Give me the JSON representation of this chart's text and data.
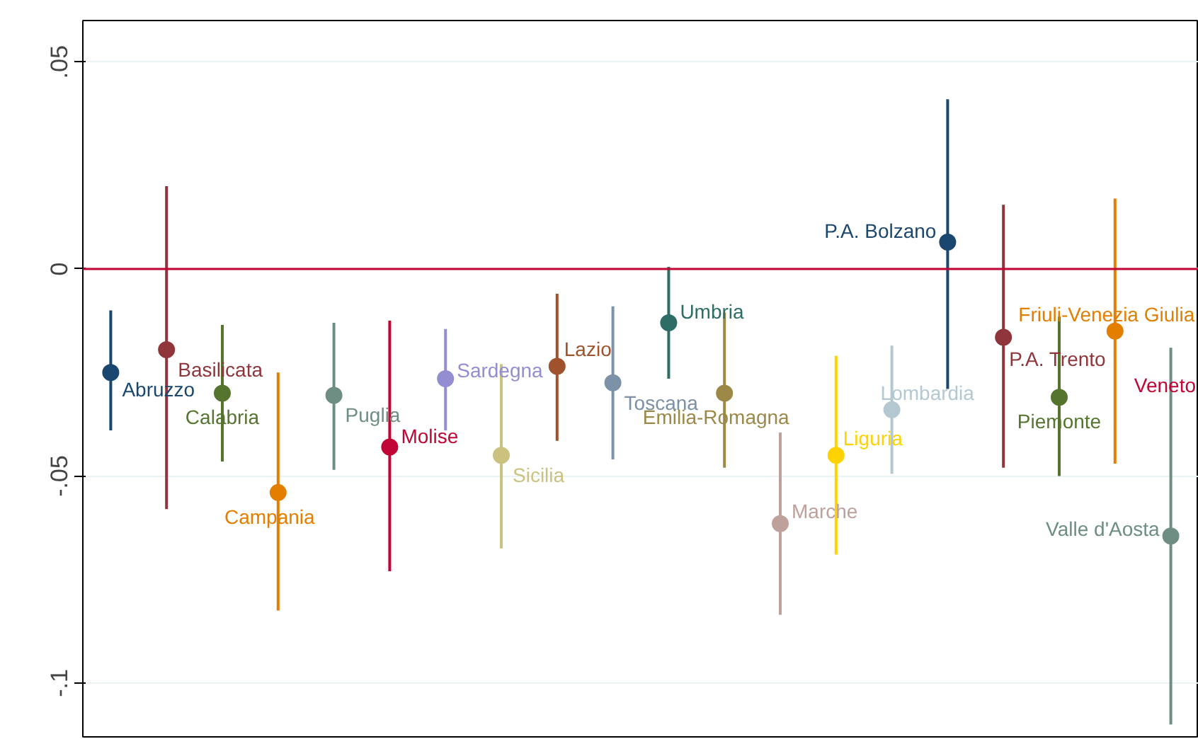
{
  "chart_data": {
    "type": "scatter",
    "categories": [
      null,
      null,
      null,
      null,
      null,
      null,
      null,
      null,
      null,
      null,
      null,
      null,
      null,
      null,
      null,
      null,
      null,
      null,
      null,
      null
    ],
    "series": [
      {
        "name": "Abruzzo",
        "color": "#1a476f",
        "values": [
          -0.025,
          null,
          null,
          null,
          null,
          null,
          null,
          null,
          null,
          null,
          null,
          null,
          null,
          null,
          null,
          null,
          null,
          null,
          null,
          null
        ],
        "errors": [
          [
            -0.039,
            -0.01
          ],
          null,
          null,
          null,
          null,
          null,
          null,
          null,
          null,
          null,
          null,
          null,
          null,
          null,
          null,
          null,
          null,
          null,
          null,
          null
        ]
      },
      {
        "name": "Basilicata",
        "color": "#90353b",
        "values": [
          null,
          -0.0195,
          null,
          null,
          null,
          null,
          null,
          null,
          null,
          null,
          null,
          null,
          null,
          null,
          null,
          null,
          null,
          null,
          null,
          null
        ],
        "errors": [
          null,
          [
            -0.058,
            0.02
          ],
          null,
          null,
          null,
          null,
          null,
          null,
          null,
          null,
          null,
          null,
          null,
          null,
          null,
          null,
          null,
          null,
          null,
          null
        ]
      },
      {
        "name": "Calabria",
        "color": "#55752f",
        "values": [
          null,
          null,
          -0.03,
          null,
          null,
          null,
          null,
          null,
          null,
          null,
          null,
          null,
          null,
          null,
          null,
          null,
          null,
          null,
          null,
          null
        ],
        "errors": [
          null,
          null,
          [
            -0.0465,
            -0.0135
          ],
          null,
          null,
          null,
          null,
          null,
          null,
          null,
          null,
          null,
          null,
          null,
          null,
          null,
          null,
          null,
          null,
          null
        ]
      },
      {
        "name": "Campania",
        "color": "#e37e00",
        "values": [
          null,
          null,
          null,
          -0.054,
          null,
          null,
          null,
          null,
          null,
          null,
          null,
          null,
          null,
          null,
          null,
          null,
          null,
          null,
          null,
          null
        ],
        "errors": [
          null,
          null,
          null,
          [
            -0.0825,
            -0.025
          ],
          null,
          null,
          null,
          null,
          null,
          null,
          null,
          null,
          null,
          null,
          null,
          null,
          null,
          null,
          null,
          null
        ]
      },
      {
        "name": "Puglia",
        "color": "#6e8e84",
        "values": [
          null,
          null,
          null,
          null,
          -0.0305,
          null,
          null,
          null,
          null,
          null,
          null,
          null,
          null,
          null,
          null,
          null,
          null,
          null,
          null,
          null
        ],
        "errors": [
          null,
          null,
          null,
          null,
          [
            -0.0485,
            -0.013
          ],
          null,
          null,
          null,
          null,
          null,
          null,
          null,
          null,
          null,
          null,
          null,
          null,
          null,
          null,
          null
        ]
      },
      {
        "name": "Molise",
        "color": "#c10534",
        "values": [
          null,
          null,
          null,
          null,
          null,
          -0.043,
          null,
          null,
          null,
          null,
          null,
          null,
          null,
          null,
          null,
          null,
          null,
          null,
          null,
          null
        ],
        "errors": [
          null,
          null,
          null,
          null,
          null,
          [
            -0.073,
            -0.0125
          ],
          null,
          null,
          null,
          null,
          null,
          null,
          null,
          null,
          null,
          null,
          null,
          null,
          null,
          null
        ]
      },
      {
        "name": "Sardegna",
        "color": "#938dd2",
        "values": [
          null,
          null,
          null,
          null,
          null,
          null,
          -0.0265,
          null,
          null,
          null,
          null,
          null,
          null,
          null,
          null,
          null,
          null,
          null,
          null,
          null
        ],
        "errors": [
          null,
          null,
          null,
          null,
          null,
          null,
          [
            -0.039,
            -0.0145
          ],
          null,
          null,
          null,
          null,
          null,
          null,
          null,
          null,
          null,
          null,
          null,
          null,
          null
        ]
      },
      {
        "name": "Sicilia",
        "color": "#cac27e",
        "values": [
          null,
          null,
          null,
          null,
          null,
          null,
          null,
          -0.045,
          null,
          null,
          null,
          null,
          null,
          null,
          null,
          null,
          null,
          null,
          null,
          null
        ],
        "errors": [
          null,
          null,
          null,
          null,
          null,
          null,
          null,
          [
            -0.0675,
            -0.023
          ],
          null,
          null,
          null,
          null,
          null,
          null,
          null,
          null,
          null,
          null,
          null,
          null
        ]
      },
      {
        "name": "Lazio",
        "color": "#a0522d",
        "values": [
          null,
          null,
          null,
          null,
          null,
          null,
          null,
          null,
          -0.0235,
          null,
          null,
          null,
          null,
          null,
          null,
          null,
          null,
          null,
          null,
          null
        ],
        "errors": [
          null,
          null,
          null,
          null,
          null,
          null,
          null,
          null,
          [
            -0.0415,
            -0.006
          ],
          null,
          null,
          null,
          null,
          null,
          null,
          null,
          null,
          null,
          null,
          null
        ]
      },
      {
        "name": "Toscana",
        "color": "#7b92a8",
        "values": [
          null,
          null,
          null,
          null,
          null,
          null,
          null,
          null,
          null,
          -0.0275,
          null,
          null,
          null,
          null,
          null,
          null,
          null,
          null,
          null,
          null
        ],
        "errors": [
          null,
          null,
          null,
          null,
          null,
          null,
          null,
          null,
          null,
          [
            -0.046,
            -0.009
          ],
          null,
          null,
          null,
          null,
          null,
          null,
          null,
          null,
          null,
          null
        ]
      },
      {
        "name": "Umbria",
        "color": "#2d6d66",
        "values": [
          null,
          null,
          null,
          null,
          null,
          null,
          null,
          null,
          null,
          null,
          -0.013,
          null,
          null,
          null,
          null,
          null,
          null,
          null,
          null,
          null
        ],
        "errors": [
          null,
          null,
          null,
          null,
          null,
          null,
          null,
          null,
          null,
          null,
          [
            -0.0265,
            0.0005
          ],
          null,
          null,
          null,
          null,
          null,
          null,
          null,
          null,
          null
        ]
      },
      {
        "name": "Emilia-Romagna",
        "color": "#9c8847",
        "values": [
          null,
          null,
          null,
          null,
          null,
          null,
          null,
          null,
          null,
          null,
          null,
          -0.03,
          null,
          null,
          null,
          null,
          null,
          null,
          null,
          null
        ],
        "errors": [
          null,
          null,
          null,
          null,
          null,
          null,
          null,
          null,
          null,
          null,
          null,
          [
            -0.048,
            -0.0105
          ],
          null,
          null,
          null,
          null,
          null,
          null,
          null,
          null
        ]
      },
      {
        "name": "Marche",
        "color": "#bfa19c",
        "values": [
          null,
          null,
          null,
          null,
          null,
          null,
          null,
          null,
          null,
          null,
          null,
          null,
          -0.0615,
          null,
          null,
          null,
          null,
          null,
          null,
          null
        ],
        "errors": [
          null,
          null,
          null,
          null,
          null,
          null,
          null,
          null,
          null,
          null,
          null,
          null,
          [
            -0.0835,
            -0.0395
          ],
          null,
          null,
          null,
          null,
          null,
          null,
          null
        ]
      },
      {
        "name": "Liguria",
        "color": "#ffd200",
        "values": [
          null,
          null,
          null,
          null,
          null,
          null,
          null,
          null,
          null,
          null,
          null,
          null,
          null,
          -0.045,
          null,
          null,
          null,
          null,
          null,
          null
        ],
        "errors": [
          null,
          null,
          null,
          null,
          null,
          null,
          null,
          null,
          null,
          null,
          null,
          null,
          null,
          [
            -0.069,
            -0.021
          ],
          null,
          null,
          null,
          null,
          null,
          null
        ]
      },
      {
        "name": "Lombardia",
        "color": "#b4c8d2",
        "values": [
          null,
          null,
          null,
          null,
          null,
          null,
          null,
          null,
          null,
          null,
          null,
          null,
          null,
          null,
          -0.034,
          null,
          null,
          null,
          null,
          null
        ],
        "errors": [
          null,
          null,
          null,
          null,
          null,
          null,
          null,
          null,
          null,
          null,
          null,
          null,
          null,
          null,
          [
            -0.0495,
            -0.0185
          ],
          null,
          null,
          null,
          null,
          null
        ]
      },
      {
        "name": "P.A. Bolzano",
        "color": "#1a476f",
        "values": [
          null,
          null,
          null,
          null,
          null,
          null,
          null,
          null,
          null,
          null,
          null,
          null,
          null,
          null,
          null,
          0.0065,
          null,
          null,
          null,
          null
        ],
        "errors": [
          null,
          null,
          null,
          null,
          null,
          null,
          null,
          null,
          null,
          null,
          null,
          null,
          null,
          null,
          null,
          [
            -0.029,
            0.041
          ],
          null,
          null,
          null,
          null
        ]
      },
      {
        "name": "P.A. Trento",
        "color": "#90353b",
        "values": [
          null,
          null,
          null,
          null,
          null,
          null,
          null,
          null,
          null,
          null,
          null,
          null,
          null,
          null,
          null,
          null,
          -0.0165,
          null,
          null,
          null
        ],
        "errors": [
          null,
          null,
          null,
          null,
          null,
          null,
          null,
          null,
          null,
          null,
          null,
          null,
          null,
          null,
          null,
          null,
          [
            -0.048,
            0.0155
          ],
          null,
          null,
          null
        ]
      },
      {
        "name": "Piemonte",
        "color": "#55752f",
        "values": [
          null,
          null,
          null,
          null,
          null,
          null,
          null,
          null,
          null,
          null,
          null,
          null,
          null,
          null,
          null,
          null,
          null,
          -0.031,
          null,
          null
        ],
        "errors": [
          null,
          null,
          null,
          null,
          null,
          null,
          null,
          null,
          null,
          null,
          null,
          null,
          null,
          null,
          null,
          null,
          null,
          [
            -0.05,
            -0.0115
          ],
          null,
          null
        ]
      },
      {
        "name": "Friuli-Venezia Giulia",
        "color": "#e37e00",
        "values": [
          null,
          null,
          null,
          null,
          null,
          null,
          null,
          null,
          null,
          null,
          null,
          null,
          null,
          null,
          null,
          null,
          null,
          null,
          -0.015,
          null
        ],
        "errors": [
          null,
          null,
          null,
          null,
          null,
          null,
          null,
          null,
          null,
          null,
          null,
          null,
          null,
          null,
          null,
          null,
          null,
          null,
          [
            -0.047,
            0.017
          ],
          null
        ]
      },
      {
        "name": "Valle d'Aosta",
        "color": "#6e8e84",
        "values": [
          null,
          null,
          null,
          null,
          null,
          null,
          null,
          null,
          null,
          null,
          null,
          null,
          null,
          null,
          null,
          null,
          null,
          null,
          null,
          -0.0645
        ],
        "errors": [
          null,
          null,
          null,
          null,
          null,
          null,
          null,
          null,
          null,
          null,
          null,
          null,
          null,
          null,
          null,
          null,
          null,
          null,
          null,
          [
            -0.11,
            -0.019
          ]
        ]
      }
    ],
    "ylim": [
      -0.113,
      0.06
    ],
    "yticks": [
      {
        "value": 0.05,
        "label": ".05"
      },
      0,
      {
        "value": -0.05,
        "label": "-.05"
      },
      {
        "value": -0.1,
        "label": "-.1"
      }
    ],
    "grid": "y",
    "tick_labels": "y",
    "marker": "circle",
    "ref_lines": [
      {
        "axis": "y",
        "value": 0,
        "color": "#c10534"
      }
    ],
    "annotations": [
      "Veneto"
    ]
  }
}
